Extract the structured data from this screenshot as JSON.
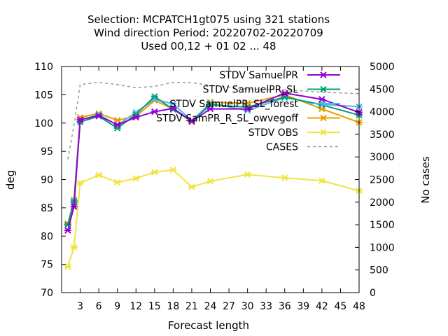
{
  "chart_data": {
    "type": "line",
    "title_lines": [
      "Selection: MCPATCH1gt075 using   321 stations",
      "Wind direction   Period: 20220702-20220709",
      "Used  00,12  + 01 02 ... 48"
    ],
    "xlabel": "Forecast length",
    "ylabel": "deg",
    "y2label": "No cases",
    "xlim": [
      0,
      48
    ],
    "ylim": [
      70,
      110
    ],
    "y2lim": [
      0,
      5000
    ],
    "x_ticks": [
      3,
      6,
      9,
      12,
      15,
      18,
      21,
      24,
      27,
      30,
      33,
      36,
      39,
      42,
      45,
      48
    ],
    "y_ticks": [
      70,
      75,
      80,
      85,
      90,
      95,
      100,
      105,
      110
    ],
    "y2_ticks": [
      0,
      500,
      1000,
      1500,
      2000,
      2500,
      3000,
      3500,
      4000,
      4500,
      5000
    ],
    "grid": false,
    "legend_position": "top-right",
    "x": [
      1,
      2,
      3,
      6,
      9,
      12,
      15,
      18,
      21,
      24,
      30,
      36,
      42,
      48
    ],
    "series": [
      {
        "name": "STDV SamuelPR",
        "color": "#9400d3",
        "marker": "x",
        "values": [
          81.0,
          85.2,
          100.6,
          101.3,
          99.7,
          101.0,
          102.0,
          102.6,
          100.3,
          102.5,
          102.5,
          105.3,
          104.2,
          101.9
        ]
      },
      {
        "name": "STDV SamuelPR_SL",
        "color": "#009e73",
        "marker": "x",
        "values": [
          82.0,
          86.0,
          100.2,
          101.2,
          99.1,
          101.5,
          104.7,
          102.4,
          100.3,
          103.2,
          102.8,
          104.6,
          103.2,
          101.4
        ]
      },
      {
        "name": "STDV SamuelPR_SL_forest",
        "color": "#56b4e9",
        "marker": "x",
        "values": [
          82.0,
          86.2,
          100.5,
          101.5,
          99.6,
          101.9,
          104.2,
          103.4,
          100.4,
          103.5,
          102.2,
          104.5,
          103.3,
          102.9
        ]
      },
      {
        "name": "STDV SamPR_R_SL_owvegoff",
        "color": "#e69f00",
        "marker": "x",
        "values": [
          82.2,
          86.4,
          101.0,
          101.7,
          100.5,
          101.2,
          104.0,
          102.5,
          100.2,
          103.7,
          103.5,
          105.0,
          102.5,
          100.1
        ]
      },
      {
        "name": "STDV OBS",
        "color": "#f0e442",
        "marker": "x",
        "values": [
          74.6,
          78.0,
          89.4,
          90.8,
          89.5,
          90.2,
          91.3,
          91.7,
          88.7,
          89.7,
          90.9,
          90.3,
          89.8,
          88.0
        ]
      },
      {
        "name": "CASES",
        "color": "#999999",
        "marker": "none",
        "axis": "y2",
        "dashed": true,
        "values": [
          2950,
          3700,
          4600,
          4650,
          4600,
          4530,
          4560,
          4650,
          4640,
          4590,
          4500,
          4490,
          4430,
          4400
        ]
      }
    ]
  }
}
